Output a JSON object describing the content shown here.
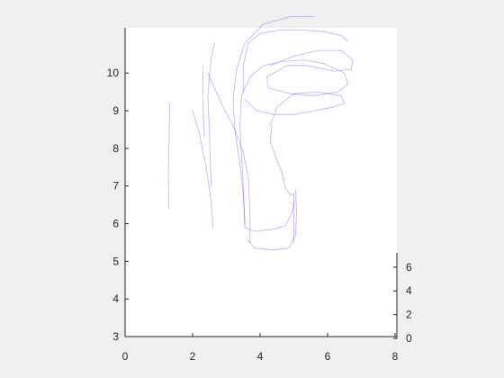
{
  "chart_data": {
    "type": "line",
    "title": "",
    "xlabel": "",
    "ylabel": "",
    "xlim": [
      0,
      8
    ],
    "ylim": [
      3,
      11.2
    ],
    "zlim": [
      0,
      7.2
    ],
    "x_ticks": [
      "0",
      "2",
      "4",
      "6",
      "8"
    ],
    "y_ticks": [
      "3",
      "4",
      "5",
      "6",
      "7",
      "8",
      "9",
      "10"
    ],
    "z_ticks": [
      "0",
      "2",
      "4",
      "6"
    ],
    "grid": false,
    "legend": "none",
    "line_color": "#0000ff",
    "line_opacity": 0.3,
    "series": [
      {
        "points": [
          [
            1.3,
            6.4
          ],
          [
            1.28,
            7.3
          ],
          [
            1.3,
            8.1
          ],
          [
            1.32,
            9.2
          ]
        ]
      },
      {
        "points": [
          [
            2.0,
            9.0
          ],
          [
            2.2,
            8.4
          ],
          [
            2.4,
            7.5
          ],
          [
            2.55,
            6.6
          ],
          [
            2.6,
            5.9
          ]
        ]
      },
      {
        "points": [
          [
            2.35,
            8.3
          ],
          [
            2.3,
            9.2
          ],
          [
            2.3,
            10.2
          ]
        ]
      },
      {
        "points": [
          [
            2.55,
            7.0
          ],
          [
            2.5,
            8.4
          ],
          [
            2.45,
            9.4
          ],
          [
            2.55,
            10.4
          ],
          [
            2.65,
            10.8
          ]
        ]
      },
      {
        "points": [
          [
            2.45,
            10.0
          ],
          [
            2.85,
            9.2
          ],
          [
            3.25,
            8.5
          ],
          [
            3.5,
            7.9
          ],
          [
            3.65,
            7.2
          ],
          [
            3.7,
            6.3
          ],
          [
            3.7,
            5.5
          ]
        ]
      },
      {
        "points": [
          [
            3.55,
            5.9
          ],
          [
            3.5,
            6.8
          ],
          [
            3.4,
            7.6
          ],
          [
            3.25,
            8.5
          ],
          [
            3.2,
            9.3
          ],
          [
            3.3,
            10.1
          ],
          [
            3.55,
            10.8
          ],
          [
            4.1,
            11.3
          ],
          [
            4.9,
            11.5
          ],
          [
            5.6,
            11.5
          ]
        ]
      },
      {
        "points": [
          [
            3.55,
            5.9
          ],
          [
            3.8,
            5.8
          ],
          [
            4.4,
            5.85
          ],
          [
            4.75,
            5.95
          ],
          [
            4.95,
            6.3
          ],
          [
            5.0,
            6.6
          ]
        ]
      },
      {
        "points": [
          [
            3.6,
            5.6
          ],
          [
            3.85,
            5.35
          ],
          [
            4.4,
            5.3
          ],
          [
            4.85,
            5.35
          ],
          [
            5.05,
            5.7
          ],
          [
            5.08,
            6.3
          ],
          [
            5.05,
            6.9
          ]
        ]
      },
      {
        "points": [
          [
            3.55,
            6.0
          ],
          [
            3.5,
            7.0
          ],
          [
            3.45,
            7.8
          ],
          [
            3.4,
            8.6
          ],
          [
            3.45,
            9.4
          ],
          [
            3.7,
            9.9
          ],
          [
            4.1,
            10.2
          ],
          [
            4.6,
            10.3
          ],
          [
            5.3,
            10.35
          ],
          [
            5.9,
            10.25
          ],
          [
            6.5,
            10.0
          ],
          [
            6.6,
            9.7
          ],
          [
            6.3,
            9.5
          ],
          [
            5.6,
            9.4
          ],
          [
            4.9,
            9.45
          ],
          [
            4.25,
            9.6
          ],
          [
            4.2,
            9.9
          ],
          [
            4.8,
            10.2
          ],
          [
            5.4,
            10.2
          ],
          [
            6.2,
            10.05
          ],
          [
            6.7,
            10.1
          ],
          [
            6.75,
            10.35
          ],
          [
            6.4,
            10.6
          ],
          [
            5.7,
            10.6
          ],
          [
            5.0,
            10.45
          ],
          [
            4.3,
            10.2
          ]
        ]
      },
      {
        "points": [
          [
            3.55,
            9.3
          ],
          [
            3.9,
            9.0
          ],
          [
            4.4,
            8.9
          ],
          [
            5.0,
            8.9
          ],
          [
            5.6,
            9.0
          ],
          [
            6.2,
            9.1
          ],
          [
            6.5,
            9.2
          ],
          [
            6.4,
            9.4
          ],
          [
            5.7,
            9.5
          ],
          [
            5.0,
            9.45
          ],
          [
            4.5,
            9.1
          ],
          [
            4.3,
            8.6
          ]
        ]
      },
      {
        "points": [
          [
            3.5,
            9.5
          ],
          [
            3.5,
            10.2
          ],
          [
            3.65,
            10.8
          ],
          [
            4.0,
            11.05
          ],
          [
            4.6,
            11.15
          ],
          [
            5.2,
            11.15
          ],
          [
            5.9,
            11.1
          ],
          [
            6.4,
            11.0
          ],
          [
            6.6,
            10.85
          ]
        ]
      },
      {
        "points": [
          [
            4.35,
            8.6
          ],
          [
            4.3,
            8.2
          ],
          [
            4.45,
            7.8
          ],
          [
            4.65,
            7.35
          ],
          [
            4.75,
            6.95
          ],
          [
            4.9,
            6.75
          ],
          [
            5.0,
            6.8
          ],
          [
            5.0,
            6.2
          ],
          [
            5.0,
            5.5
          ]
        ]
      }
    ]
  }
}
